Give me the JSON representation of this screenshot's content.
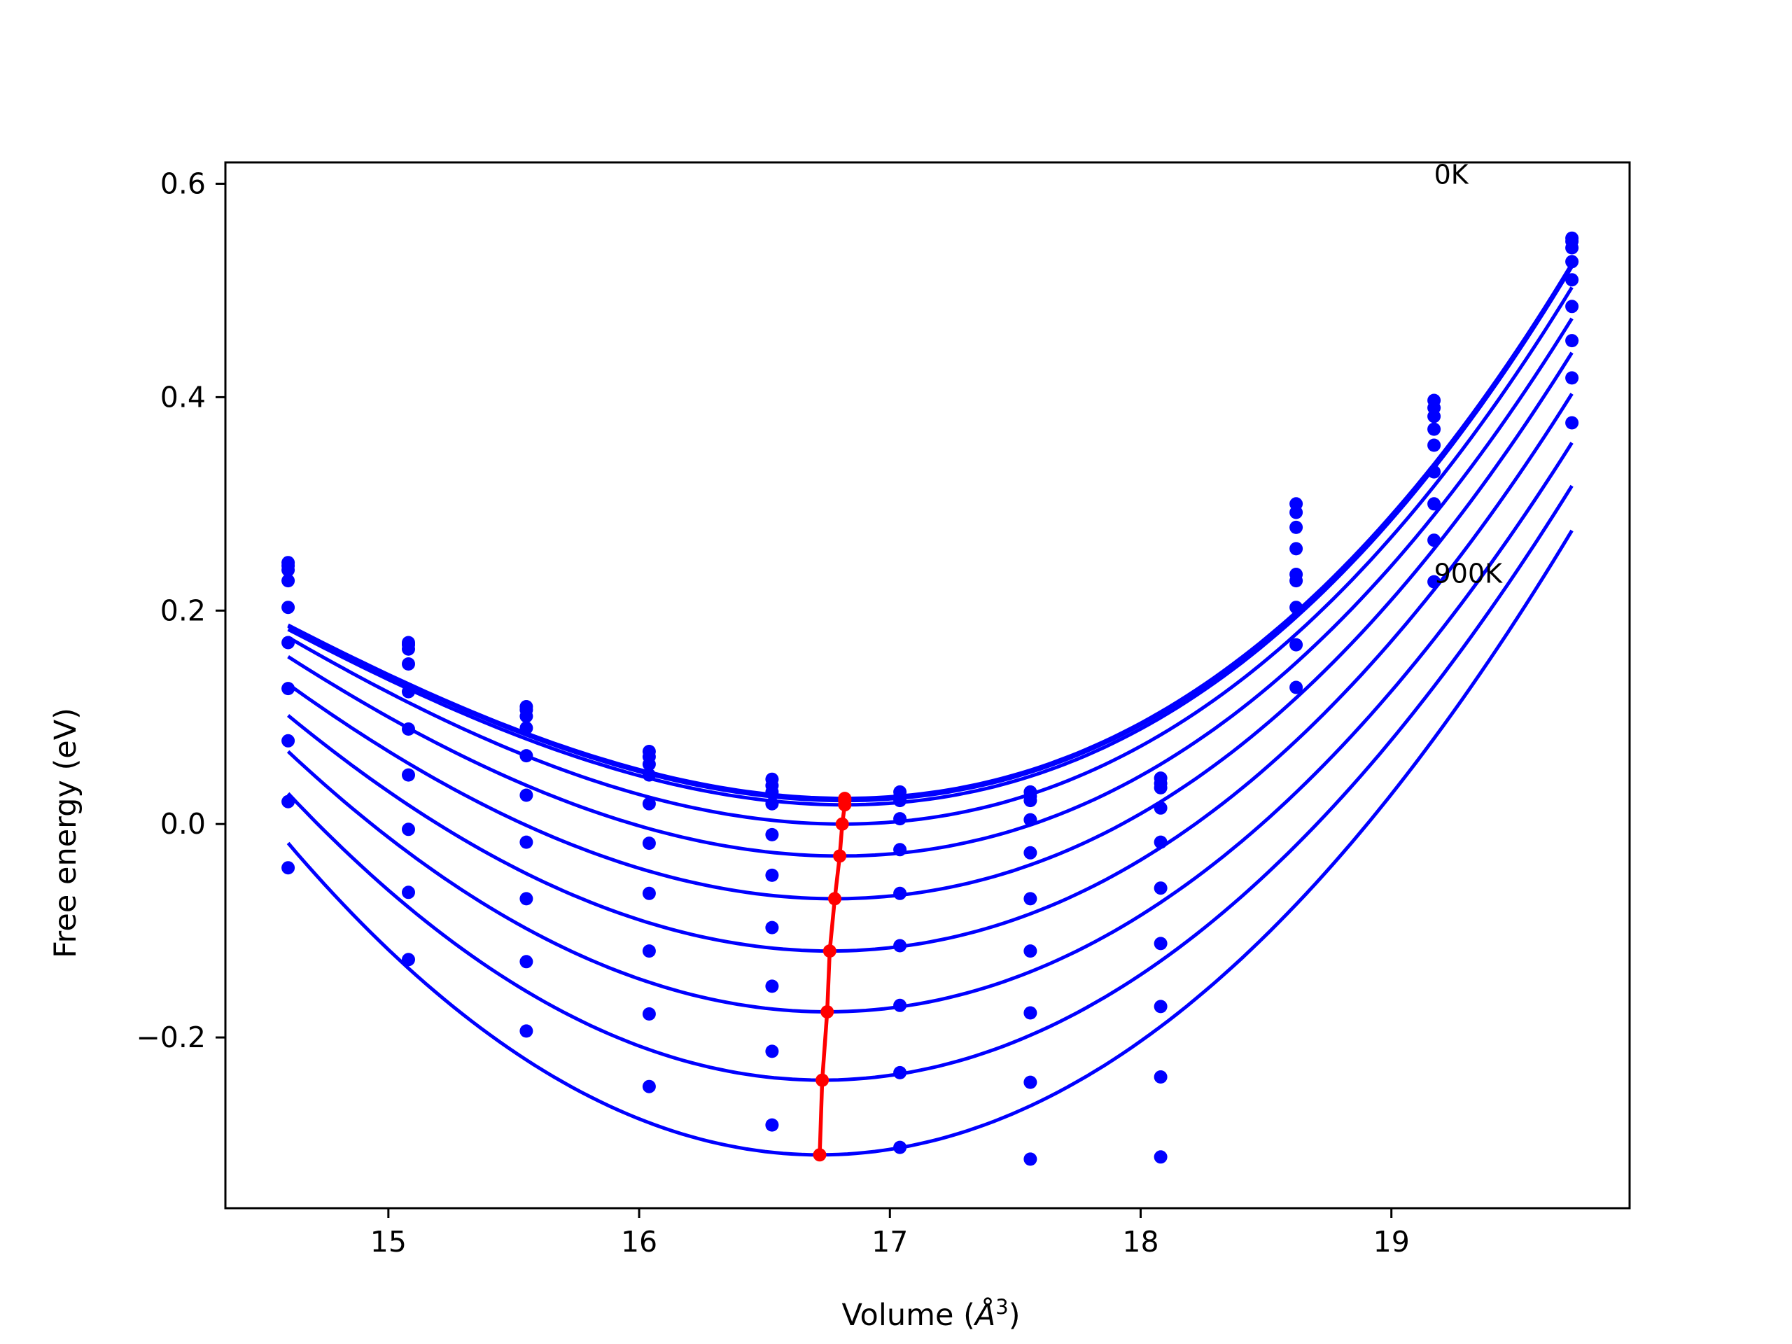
{
  "chart_data": {
    "type": "scatter",
    "title": "",
    "xlabel": "Volume (",
    "xlabel_symbol": "Å",
    "xlabel_exponent": "3",
    "xlabel_close": ")",
    "ylabel": "Free energy (eV)",
    "xlim": [
      14.35,
      19.95
    ],
    "ylim": [
      -0.36,
      0.62
    ],
    "xticks": [
      15,
      16,
      17,
      18,
      19
    ],
    "xtick_labels": [
      "15",
      "16",
      "17",
      "18",
      "19"
    ],
    "yticks": [
      -0.2,
      0.0,
      0.2,
      0.4,
      0.6
    ],
    "ytick_labels": [
      "−0.2",
      "0.0",
      "0.2",
      "0.4",
      "0.6"
    ],
    "grid": false,
    "legend": "none",
    "annotations": [
      {
        "text": "0K",
        "x": 19.17,
        "y": 0.6
      },
      {
        "text": "900K",
        "x": 19.17,
        "y": 0.226
      }
    ],
    "colors": {
      "series": "#0000ff",
      "equilibrium": "#ff0000",
      "axes": "#000000"
    },
    "volumes": [
      14.6,
      15.08,
      15.55,
      16.04,
      16.53,
      17.04,
      17.56,
      18.08,
      18.62,
      19.17,
      19.72
    ],
    "series": [
      {
        "fit": {
          "e0": 0.024,
          "v0": 16.82,
          "a": 0.0445,
          "b": 0.0052
        },
        "points": [
          0.245,
          0.17,
          0.11,
          0.068,
          0.042,
          0.03,
          0.03,
          0.043,
          0.3,
          0.397,
          0.549
        ]
      },
      {
        "fit": {
          "e0": 0.022,
          "v0": 16.82,
          "a": 0.0447,
          "b": 0.0052
        },
        "points": [
          0.242,
          0.168,
          0.107,
          0.063,
          0.036,
          0.026,
          0.026,
          0.038,
          0.292,
          0.39,
          0.546
        ]
      },
      {
        "fit": {
          "e0": 0.018,
          "v0": 16.82,
          "a": 0.0449,
          "b": 0.0052
        },
        "points": [
          0.238,
          0.164,
          0.101,
          0.056,
          0.03,
          0.022,
          0.022,
          0.034,
          0.278,
          0.382,
          0.54
        ]
      },
      {
        "fit": {
          "e0": 0.0,
          "v0": 16.81,
          "a": 0.046,
          "b": 0.0046
        },
        "points": [
          0.228,
          0.15,
          0.09,
          0.046,
          0.019,
          0.005,
          0.004,
          0.015,
          0.258,
          0.37,
          0.527
        ]
      },
      {
        "fit": {
          "e0": -0.03,
          "v0": 16.8,
          "a": 0.0474,
          "b": 0.004
        },
        "points": [
          0.203,
          0.124,
          0.064,
          0.019,
          -0.01,
          -0.024,
          -0.027,
          -0.017,
          0.234,
          0.355,
          0.51
        ]
      },
      {
        "fit": {
          "e0": -0.07,
          "v0": 16.78,
          "a": 0.0495,
          "b": 0.0033
        },
        "points": [
          0.17,
          0.089,
          0.027,
          -0.018,
          -0.048,
          -0.065,
          -0.07,
          -0.06,
          0.203,
          0.33,
          0.485
        ]
      },
      {
        "fit": {
          "e0": -0.119,
          "v0": 16.76,
          "a": 0.0525,
          "b": 0.0024
        },
        "points": [
          0.127,
          0.046,
          -0.017,
          -0.065,
          -0.097,
          -0.114,
          -0.119,
          -0.112,
          0.168,
          0.3,
          0.453
        ]
      },
      {
        "fit": {
          "e0": -0.176,
          "v0": 16.75,
          "a": 0.056,
          "b": 0.0015
        },
        "points": [
          0.078,
          -0.005,
          -0.07,
          -0.119,
          -0.152,
          -0.17,
          -0.177,
          -0.171,
          0.128,
          0.266,
          0.418
        ]
      },
      {
        "fit": {
          "e0": -0.24,
          "v0": 16.73,
          "a": 0.0605,
          "b": 0.0006
        },
        "points": [
          0.021,
          -0.064,
          -0.129,
          -0.178,
          -0.213,
          -0.233,
          -0.242,
          -0.237,
          0.228,
          0.227,
          0.376
        ]
      },
      {
        "fit": {
          "e0": -0.31,
          "v0": 16.72,
          "a": 0.065,
          "b": 0.0
        },
        "points": [
          -0.041,
          -0.127,
          -0.194,
          -0.246,
          -0.282,
          -0.303,
          -0.314,
          -0.312,
          null,
          null,
          null
        ]
      }
    ],
    "equilibrium": {
      "x": [
        16.82,
        16.82,
        16.82,
        16.81,
        16.8,
        16.78,
        16.76,
        16.75,
        16.73,
        16.72
      ],
      "y": [
        0.024,
        0.022,
        0.018,
        0.0,
        -0.03,
        -0.07,
        -0.119,
        -0.176,
        -0.24,
        -0.31
      ]
    }
  }
}
